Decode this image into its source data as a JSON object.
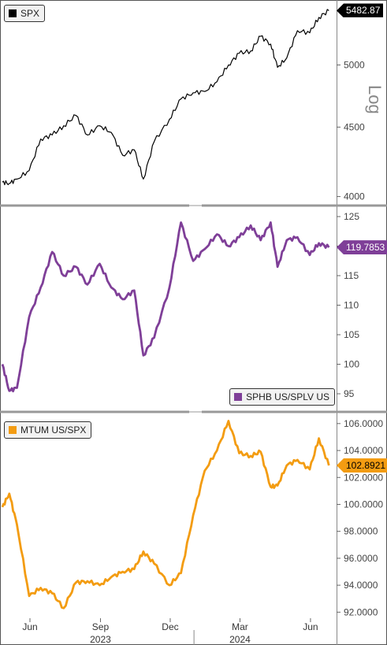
{
  "chart_data": [
    {
      "type": "line",
      "name": "price-panel",
      "legend": "SPX",
      "legend_placement": "top-left",
      "last_value_label": "5482.87",
      "scale_label": "Log",
      "yscale": "log",
      "ylim": [
        3950,
        5560
      ],
      "yticks": [
        "5000",
        "4500",
        "4000"
      ],
      "ytick_values": [
        5000,
        4500,
        4000
      ],
      "colors": {
        "line": "#000000",
        "tag_bg": "#000000",
        "tag_fg": "#ffffff"
      },
      "x": [
        "2023-04-26",
        "2023-05-05",
        "2023-05-15",
        "2023-05-31",
        "2023-06-15",
        "2023-06-30",
        "2023-07-15",
        "2023-07-31",
        "2023-08-15",
        "2023-08-31",
        "2023-09-15",
        "2023-09-30",
        "2023-10-15",
        "2023-10-27",
        "2023-11-10",
        "2023-11-30",
        "2023-12-15",
        "2023-12-31",
        "2024-01-15",
        "2024-01-31",
        "2024-02-15",
        "2024-02-29",
        "2024-03-15",
        "2024-03-28",
        "2024-04-10",
        "2024-04-19",
        "2024-05-01",
        "2024-05-15",
        "2024-05-31",
        "2024-06-12",
        "2024-06-25"
      ],
      "y": [
        4100,
        4090,
        4120,
        4180,
        4410,
        4440,
        4510,
        4590,
        4440,
        4510,
        4460,
        4290,
        4330,
        4120,
        4390,
        4560,
        4720,
        4770,
        4780,
        4860,
        5000,
        5100,
        5120,
        5250,
        5180,
        4980,
        5060,
        5300,
        5280,
        5420,
        5482.87
      ]
    },
    {
      "type": "line",
      "name": "ratio-panel",
      "legend": "SPHB US/SPLV US",
      "legend_placement": "bottom-right",
      "last_value_label": "119.7853",
      "yscale": "linear",
      "ylim": [
        92.2,
        126.6
      ],
      "yticks": [
        "125",
        "120",
        "115",
        "110",
        "105",
        "100",
        "95"
      ],
      "ytick_values": [
        125,
        120,
        115,
        110,
        105,
        100,
        95
      ],
      "colors": {
        "line": "#7f3f98",
        "tag_bg": "#7f3f98",
        "tag_fg": "#ffffff"
      },
      "x": [
        "2023-04-26",
        "2023-05-05",
        "2023-05-15",
        "2023-05-31",
        "2023-06-15",
        "2023-06-30",
        "2023-07-15",
        "2023-07-31",
        "2023-08-15",
        "2023-08-31",
        "2023-09-15",
        "2023-09-30",
        "2023-10-15",
        "2023-10-27",
        "2023-11-10",
        "2023-11-30",
        "2023-12-15",
        "2023-12-31",
        "2024-01-15",
        "2024-01-31",
        "2024-02-15",
        "2024-02-29",
        "2024-03-15",
        "2024-03-28",
        "2024-04-10",
        "2024-04-19",
        "2024-05-01",
        "2024-05-15",
        "2024-05-31",
        "2024-06-12",
        "2024-06-25"
      ],
      "y": [
        100,
        95.5,
        96,
        108,
        113,
        119,
        115,
        116.5,
        113.5,
        117,
        113,
        111,
        112.5,
        101.5,
        104.5,
        113,
        124,
        117.5,
        119.5,
        122,
        120,
        121.5,
        123.5,
        121,
        124,
        116.5,
        121,
        121.5,
        118.5,
        120.5,
        119.7853
      ]
    },
    {
      "type": "line",
      "name": "momentum-panel",
      "legend": "MTUM US/SPX",
      "legend_placement": "top-left",
      "last_value_label": "102.8921",
      "yscale": "linear",
      "ylim": [
        91.55,
        106.75
      ],
      "yticks": [
        "106.0000",
        "104.0000",
        "102.0000",
        "100.0000",
        "98.0000",
        "96.0000",
        "94.0000",
        "92.0000"
      ],
      "ytick_values": [
        106,
        104,
        102,
        100,
        98,
        96,
        94,
        92
      ],
      "colors": {
        "line": "#f39c12",
        "tag_bg": "#f39c12",
        "tag_fg": "#000000"
      },
      "x": [
        "2023-04-26",
        "2023-05-05",
        "2023-05-15",
        "2023-05-31",
        "2023-06-15",
        "2023-06-30",
        "2023-07-15",
        "2023-07-31",
        "2023-08-15",
        "2023-08-31",
        "2023-09-15",
        "2023-09-30",
        "2023-10-15",
        "2023-10-27",
        "2023-11-10",
        "2023-11-30",
        "2023-12-15",
        "2023-12-31",
        "2024-01-15",
        "2024-01-31",
        "2024-02-15",
        "2024-02-29",
        "2024-03-15",
        "2024-03-28",
        "2024-04-10",
        "2024-04-19",
        "2024-05-01",
        "2024-05-15",
        "2024-05-31",
        "2024-06-12",
        "2024-06-25"
      ],
      "y": [
        99.8,
        100.8,
        98.5,
        93.2,
        93.8,
        93.4,
        92.3,
        94.2,
        94.3,
        94,
        94.6,
        95,
        95.2,
        96.5,
        95.6,
        94,
        94.9,
        99.2,
        102.5,
        104,
        106.2,
        103.8,
        103.6,
        103.9,
        101.3,
        101.4,
        102.9,
        103.3,
        102.6,
        104.9,
        102.8921
      ]
    }
  ],
  "x_axis": {
    "ticks": [
      {
        "label": "Jun",
        "date": "2023-06-01"
      },
      {
        "label": "Sep",
        "date": "2023-09-01"
      },
      {
        "label": "Dec",
        "date": "2023-12-01"
      },
      {
        "label": "Mar",
        "date": "2024-03-01"
      },
      {
        "label": "Jun",
        "date": "2024-06-01"
      }
    ],
    "years": [
      {
        "label": "2023",
        "date": "2023-09-01"
      },
      {
        "label": "2024",
        "date": "2024-03-01"
      }
    ],
    "year_divider_date": "2024-01-01",
    "range": [
      "2023-04-26",
      "2024-07-05"
    ]
  }
}
